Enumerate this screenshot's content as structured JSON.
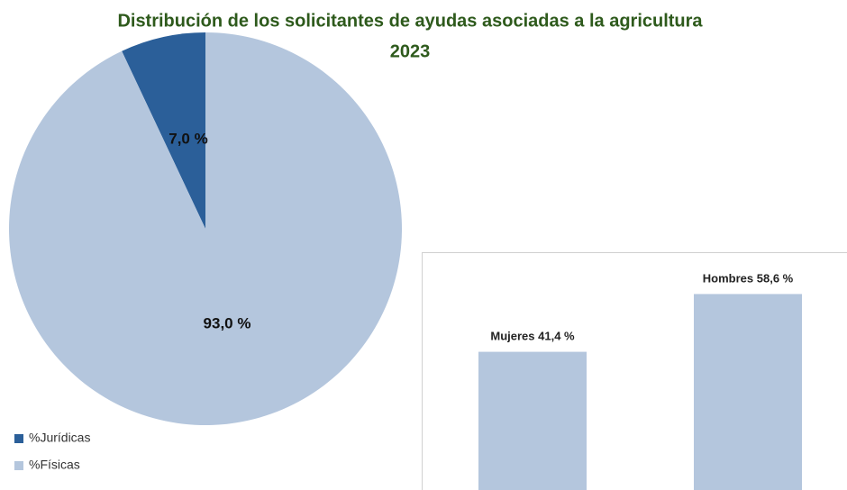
{
  "chart_data": [
    {
      "type": "pie",
      "title": "Distribución de los solicitantes de ayudas asociadas a la agricultura",
      "subtitle": "2023",
      "categories": [
        "%Jurídicas",
        "%Físicas"
      ],
      "values": [
        7.0,
        93.0
      ],
      "value_labels": [
        "7,0 %",
        "93,0 %"
      ],
      "colors": [
        "#2b5f99",
        "#b4c6dd"
      ],
      "legend": "bottom-left"
    },
    {
      "type": "bar",
      "categories": [
        "Mujeres",
        "Hombres"
      ],
      "values": [
        41.4,
        58.6
      ],
      "value_labels": [
        "41,4 %",
        "58,6 %"
      ],
      "color": "#b4c6dd"
    }
  ]
}
